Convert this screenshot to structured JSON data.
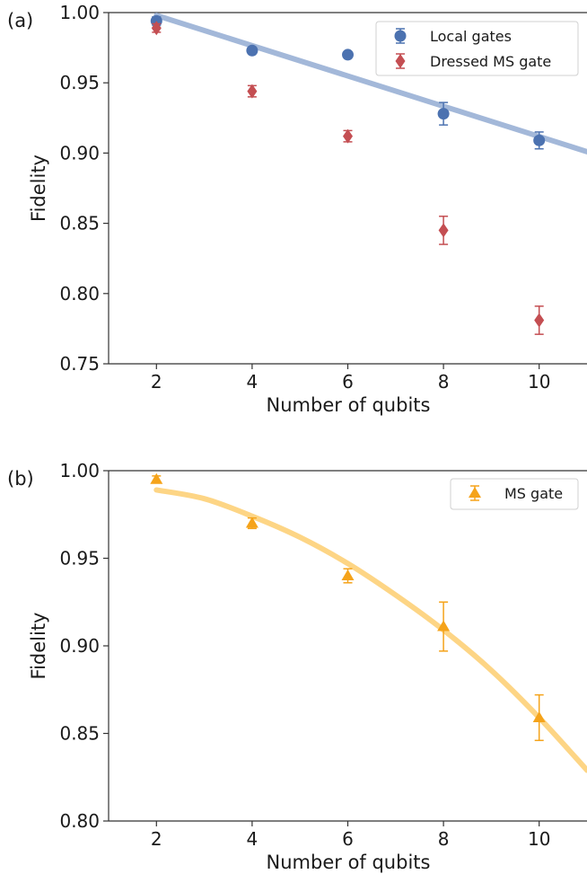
{
  "chart_data": [
    {
      "type": "scatter",
      "panel_label": "(a)",
      "xlabel": "Number of qubits",
      "ylabel": "Fidelity",
      "xlim": [
        1,
        11
      ],
      "ylim": [
        0.75,
        1.0
      ],
      "xticks": [
        "2",
        "4",
        "6",
        "8",
        "10"
      ],
      "yticks": [
        "0.75",
        "0.80",
        "0.85",
        "0.90",
        "0.95",
        "1.00"
      ],
      "legend_position": "top-right",
      "colors": {
        "local": "#4c72b0",
        "local_fit": "#a3b8d9",
        "dressed": "#c44e52"
      },
      "series": [
        {
          "name": "Local gates",
          "marker": "circle",
          "x": [
            2,
            4,
            6,
            8,
            10
          ],
          "y": [
            0.994,
            0.973,
            0.97,
            0.928,
            0.909
          ],
          "err": [
            0.003,
            0.002,
            0.002,
            0.008,
            0.006
          ]
        },
        {
          "name": "Dressed MS gate",
          "marker": "diamond",
          "x": [
            2,
            4,
            6,
            8,
            10
          ],
          "y": [
            0.989,
            0.944,
            0.912,
            0.845,
            0.781
          ],
          "err": [
            0.003,
            0.004,
            0.004,
            0.01,
            0.01
          ]
        }
      ],
      "fit": {
        "x": [
          2,
          11
        ],
        "y": [
          0.998,
          0.901
        ]
      }
    },
    {
      "type": "scatter",
      "panel_label": "(b)",
      "xlabel": "Number of qubits",
      "ylabel": "Fidelity",
      "xlim": [
        1,
        11
      ],
      "ylim": [
        0.8,
        1.0
      ],
      "xticks": [
        "2",
        "4",
        "6",
        "8",
        "10"
      ],
      "yticks": [
        "0.80",
        "0.85",
        "0.90",
        "0.95",
        "1.00"
      ],
      "legend_position": "top-right",
      "colors": {
        "ms": "#f5a31a",
        "ms_fit": "#fdd585"
      },
      "series": [
        {
          "name": "MS gate",
          "marker": "triangle",
          "x": [
            2,
            4,
            6,
            8,
            10
          ],
          "y": [
            0.995,
            0.97,
            0.94,
            0.911,
            0.859
          ],
          "err": [
            0.002,
            0.003,
            0.004,
            0.014,
            0.013
          ]
        }
      ],
      "fit": {
        "x": [
          2,
          3,
          4,
          5,
          6,
          7,
          8,
          9,
          10,
          11
        ],
        "y": [
          0.989,
          0.984,
          0.974,
          0.962,
          0.947,
          0.929,
          0.909,
          0.886,
          0.859,
          0.829
        ]
      }
    }
  ]
}
